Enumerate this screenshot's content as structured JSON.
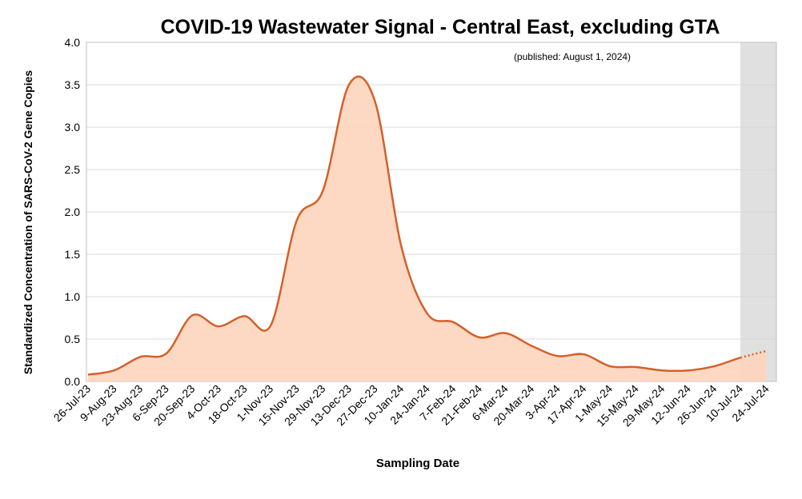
{
  "chart_data": {
    "type": "area",
    "title": "COVID-19 Wastewater Signal - Central East, excluding GTA",
    "subtitle": "(published: August 1, 2024)",
    "x_label": "Sampling Date",
    "y_label": "Standardized Concentration of SARS-CoV-2 Gene Copies",
    "categories": [
      "26-Jul-23",
      "9-Aug-23",
      "23-Aug-23",
      "6-Sep-23",
      "20-Sep-23",
      "4-Oct-23",
      "18-Oct-23",
      "1-Nov-23",
      "15-Nov-23",
      "29-Nov-23",
      "13-Dec-23",
      "27-Dec-23",
      "10-Jan-24",
      "24-Jan-24",
      "7-Feb-24",
      "21-Feb-24",
      "6-Mar-24",
      "20-Mar-24",
      "3-Apr-24",
      "17-Apr-24",
      "1-May-24",
      "15-May-24",
      "29-May-24",
      "12-Jun-24",
      "26-Jun-24",
      "10-Jul-24",
      "24-Jul-24"
    ],
    "values": [
      0.08,
      0.13,
      0.29,
      0.33,
      0.78,
      0.65,
      0.77,
      0.66,
      1.9,
      2.25,
      3.5,
      3.3,
      1.6,
      0.8,
      0.7,
      0.52,
      0.57,
      0.42,
      0.3,
      0.32,
      0.18,
      0.17,
      0.13,
      0.13,
      0.18,
      0.28,
      0.36
    ],
    "color": "#d4602a",
    "fill_color": "#fdd5bd",
    "shaded_from": "10-Jul-24",
    "shade_color": "#e0e0e0",
    "ylim": [
      0,
      4
    ],
    "yticks": [
      {
        "value": 0,
        "label": "0.0"
      },
      {
        "value": 0.5,
        "label": "0.5"
      },
      {
        "value": 1,
        "label": "1.0"
      },
      {
        "value": 1.5,
        "label": "1.5"
      },
      {
        "value": 2,
        "label": "2.0"
      },
      {
        "value": 2.5,
        "label": "2.5"
      },
      {
        "value": 3,
        "label": "3.0"
      },
      {
        "value": 3.5,
        "label": "3.5"
      },
      {
        "value": 4,
        "label": "4.0"
      }
    ],
    "grid": true
  }
}
